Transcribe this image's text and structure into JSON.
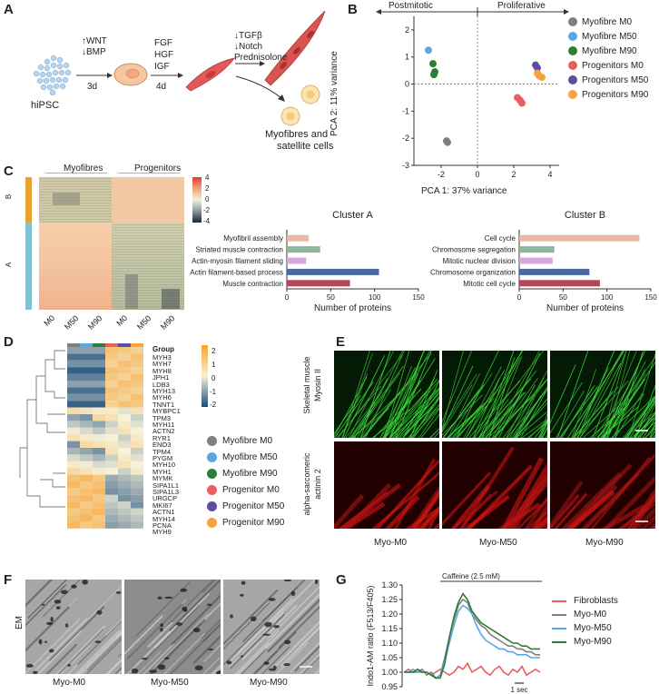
{
  "panels": {
    "A": "A",
    "B": "B",
    "C": "C",
    "D": "D",
    "E": "E",
    "F": "F",
    "G": "G"
  },
  "panelA": {
    "hipsc": "hiPSC",
    "step1_up": "↑WNT",
    "step1_down": "↓BMP",
    "step1_time": "3d",
    "step2_factors": [
      "FGF",
      "HGF",
      "IGF"
    ],
    "step2_time": "4d",
    "step3_factors": [
      "↓TGFβ",
      "↓Notch",
      "Prednisolone"
    ],
    "outcome_line1": "Myofibres and",
    "outcome_line2": "satellite cells"
  },
  "panelB": {
    "arrow_left": "Postmitotic",
    "arrow_right": "Proliferative",
    "xlabel": "PCA 1: 37% variance",
    "ylabel": "PCA 2: 11% variance",
    "xticks": [
      "-2",
      "0",
      "2",
      "4"
    ],
    "yticks": [
      "2",
      "1",
      "0",
      "-1",
      "-2",
      "-3"
    ],
    "legend": [
      {
        "label": "Myofibre M0",
        "color": "#7f7f7f"
      },
      {
        "label": "Myofibre M50",
        "color": "#5aa7e6"
      },
      {
        "label": "Myofibre M90",
        "color": "#2e7d32"
      },
      {
        "label": "Progenitors M0",
        "color": "#e8605e"
      },
      {
        "label": "Progenitors M50",
        "color": "#5b4f9e"
      },
      {
        "label": "Progenitors M90",
        "color": "#f5a340"
      }
    ]
  },
  "panelC": {
    "group_myofibres": "Myofibres",
    "group_progenitors": "Progenitors",
    "cluster_b_label": "B",
    "cluster_a_label": "A",
    "columns": [
      "M0",
      "M50",
      "M90",
      "M0",
      "M50",
      "M90"
    ],
    "colorbar_ticks": [
      "4",
      "2",
      "0",
      "-2",
      "-4"
    ]
  },
  "panelD": {
    "group_label": "Group",
    "genes": [
      "MYH3",
      "MYH7",
      "MYH8",
      "JPH1",
      "LDB3",
      "MYH13",
      "MYH6",
      "TNNT1",
      "MYBPC1",
      "TPM3",
      "MYH11",
      "ACTN2",
      "RYR1",
      "ENO3",
      "TPM4",
      "PYGM",
      "MYH10",
      "MYH1",
      "MYMK",
      "SIPA1L1",
      "SIPA1L3",
      "URGCP",
      "MKI67",
      "ACTN1",
      "MYH14",
      "PCNA",
      "MYH9"
    ],
    "colorbar_ticks": [
      "2",
      "1",
      "0",
      "-1",
      "-2"
    ],
    "legend": [
      {
        "label": "Myofibre M0",
        "color": "#7f7f7f"
      },
      {
        "label": "Myofibre M50",
        "color": "#5aa7e6"
      },
      {
        "label": "Myofibre M90",
        "color": "#2e7d32"
      },
      {
        "label": "Progenitor M0",
        "color": "#e8605e"
      },
      {
        "label": "Progenitor M50",
        "color": "#5b4f9e"
      },
      {
        "label": "Progenitor M90",
        "color": "#f5a340"
      }
    ]
  },
  "panelE": {
    "row1_label_l1": "Skeletal muscle",
    "row1_label_l2": "Myosin II",
    "row2_label_l1": "alpha-sarcomeric",
    "row2_label_l2": "actinin 2",
    "columns": [
      "Myo-M0",
      "Myo-M50",
      "Myo-M90"
    ]
  },
  "panelF": {
    "side_label": "EM",
    "columns": [
      "Myo-M0",
      "Myo-M50",
      "Myo-M90"
    ]
  },
  "chart_data": [
    {
      "type": "bar",
      "title": "Cluster A",
      "orientation": "horizontal",
      "categories": [
        "Myofibril assembly",
        "Striated muscle contraction",
        "Actin-myosin filament sliding",
        "Actin filament-based process",
        "Muscle contraction"
      ],
      "values": [
        25,
        38,
        22,
        105,
        72
      ],
      "colors": [
        "#e9b8a6",
        "#8fb59c",
        "#d4a8d8",
        "#4a6a9c",
        "#b04a5a"
      ],
      "xlabel": "Number of proteins",
      "xlim": [
        0,
        150
      ],
      "xticks": [
        "0",
        "50",
        "100",
        "150"
      ]
    },
    {
      "type": "bar",
      "title": "Cluster B",
      "orientation": "horizontal",
      "categories": [
        "Cell cycle",
        "Chromosome segregation",
        "Mitotic nuclear division",
        "Chromosome organization",
        "Mitotic cell cycle"
      ],
      "values": [
        137,
        40,
        38,
        80,
        92
      ],
      "colors": [
        "#e9b8a6",
        "#8fb59c",
        "#d4a8d8",
        "#4a6a9c",
        "#b04a5a"
      ],
      "xlabel": "Number of proteins",
      "xlim": [
        0,
        150
      ],
      "xticks": [
        "0",
        "50",
        "100",
        "150"
      ]
    },
    {
      "type": "scatter",
      "xlabel": "PCA 1: 37% variance",
      "ylabel": "PCA 2: 11% variance",
      "xlim": [
        -3.5,
        4.5
      ],
      "ylim": [
        -3,
        2.5
      ],
      "series": [
        {
          "name": "Myofibre M0",
          "color": "#7f7f7f",
          "points": [
            [
              -1.7,
              -2.1
            ],
            [
              -1.65,
              -2.15
            ]
          ]
        },
        {
          "name": "Myofibre M50",
          "color": "#5aa7e6",
          "points": [
            [
              -2.7,
              1.25
            ]
          ]
        },
        {
          "name": "Myofibre M90",
          "color": "#2e7d32",
          "points": [
            [
              -2.45,
              0.75
            ],
            [
              -2.35,
              0.45
            ],
            [
              -2.4,
              0.35
            ]
          ]
        },
        {
          "name": "Progenitors M0",
          "color": "#e8605e",
          "points": [
            [
              2.2,
              -0.5
            ],
            [
              2.35,
              -0.6
            ],
            [
              2.45,
              -0.7
            ]
          ]
        },
        {
          "name": "Progenitors M50",
          "color": "#5b4f9e",
          "points": [
            [
              3.2,
              0.7
            ],
            [
              3.3,
              0.6
            ]
          ]
        },
        {
          "name": "Progenitors M90",
          "color": "#f5a340",
          "points": [
            [
              3.4,
              0.3
            ],
            [
              3.55,
              0.25
            ],
            [
              3.3,
              0.4
            ]
          ]
        }
      ]
    },
    {
      "type": "line",
      "title": "Caffeine (2.5 mM)",
      "ylabel": "Indo1-AM ratio (F513/F405)",
      "ylim": [
        0.95,
        1.3
      ],
      "yticks": [
        "1.30",
        "1.25",
        "1.20",
        "1.15",
        "1.10",
        "1.05",
        "1.00",
        "0.95"
      ],
      "scale_bar": "1 sec",
      "x": [
        0,
        1,
        2,
        3,
        4,
        5,
        6,
        7,
        8,
        9,
        10,
        11,
        12,
        13,
        14,
        15,
        16,
        17,
        18,
        19,
        20,
        21,
        22,
        23,
        24,
        25,
        26,
        27,
        28,
        29,
        30
      ],
      "series": [
        {
          "name": "Fibroblasts",
          "color": "#e8605e",
          "values": [
            1.0,
            1.01,
            1.0,
            1.01,
            1.0,
            1.0,
            0.99,
            1.0,
            1.01,
            1.0,
            0.99,
            1.0,
            1.02,
            1.01,
            1.03,
            1.0,
            1.01,
            1.02,
            1.0,
            0.99,
            1.01,
            1.02,
            1.0,
            0.99,
            1.01,
            1.0,
            1.02,
            0.99,
            1.0,
            1.01,
            1.0
          ]
        },
        {
          "name": "Myo-M0",
          "color": "#7f7f7f",
          "values": [
            1.0,
            1.0,
            1.0,
            1.0,
            1.01,
            0.99,
            1.0,
            0.98,
            0.99,
            1.05,
            1.12,
            1.18,
            1.23,
            1.25,
            1.24,
            1.2,
            1.18,
            1.16,
            1.15,
            1.13,
            1.12,
            1.11,
            1.1,
            1.09,
            1.09,
            1.08,
            1.08,
            1.07,
            1.07,
            1.06,
            1.06
          ]
        },
        {
          "name": "Myo-M50",
          "color": "#5aa7e6",
          "values": [
            1.0,
            1.0,
            1.01,
            1.0,
            1.0,
            1.0,
            0.99,
            0.98,
            0.99,
            1.04,
            1.1,
            1.16,
            1.21,
            1.23,
            1.22,
            1.2,
            1.16,
            1.13,
            1.11,
            1.1,
            1.09,
            1.08,
            1.08,
            1.07,
            1.07,
            1.06,
            1.06,
            1.06,
            1.05,
            1.05,
            1.05
          ]
        },
        {
          "name": "Myo-M90",
          "color": "#2e7d32",
          "values": [
            1.0,
            1.0,
            1.0,
            1.01,
            1.0,
            1.0,
            0.99,
            0.98,
            0.98,
            1.03,
            1.12,
            1.19,
            1.24,
            1.27,
            1.25,
            1.21,
            1.19,
            1.17,
            1.16,
            1.15,
            1.14,
            1.13,
            1.12,
            1.11,
            1.1,
            1.1,
            1.09,
            1.09,
            1.08,
            1.08,
            1.08
          ]
        }
      ]
    }
  ]
}
